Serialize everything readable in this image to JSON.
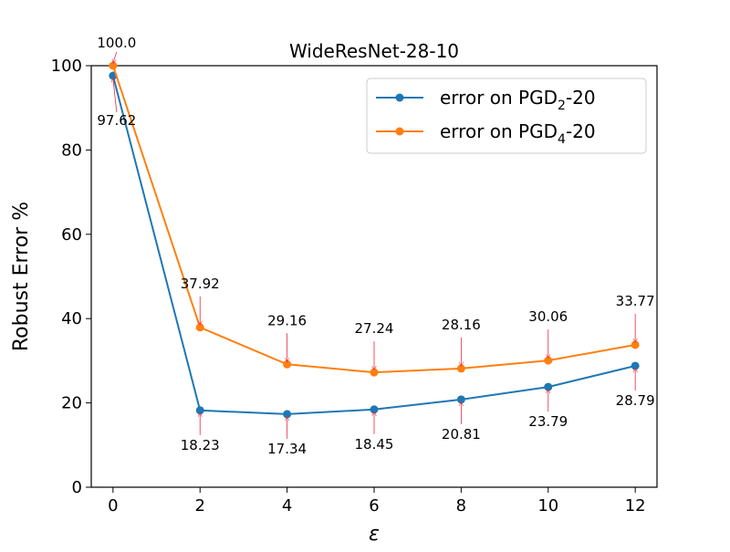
{
  "chart_data": {
    "type": "line",
    "title": "WideResNet-28-10",
    "xlabel": "ε",
    "ylabel": "Robust Error %",
    "xlim": [
      -0.5,
      12.5
    ],
    "ylim": [
      0,
      100
    ],
    "xticks": [
      0,
      2,
      4,
      6,
      8,
      10,
      12
    ],
    "yticks": [
      0,
      20,
      40,
      60,
      80,
      100
    ],
    "grid": false,
    "legend_position": "top-right",
    "x": [
      0,
      2,
      4,
      6,
      8,
      10,
      12
    ],
    "series": [
      {
        "name_prefix": "error on PGD",
        "name_sub": "2",
        "name_suffix": "-20",
        "color": "#1f77b4",
        "values": [
          97.62,
          18.23,
          17.34,
          18.45,
          20.81,
          23.79,
          28.79
        ],
        "labels": [
          "97.62",
          "18.23",
          "17.34",
          "18.45",
          "20.81",
          "23.79",
          "28.79"
        ]
      },
      {
        "name_prefix": "error on PGD",
        "name_sub": "4",
        "name_suffix": "-20",
        "color": "#ff7f0e",
        "values": [
          100.0,
          37.92,
          29.16,
          27.24,
          28.16,
          30.06,
          33.77
        ],
        "labels": [
          "100.0",
          "37.92",
          "29.16",
          "27.24",
          "28.16",
          "30.06",
          "33.77"
        ]
      }
    ],
    "annotation_arrow_color": "#e8283c"
  }
}
